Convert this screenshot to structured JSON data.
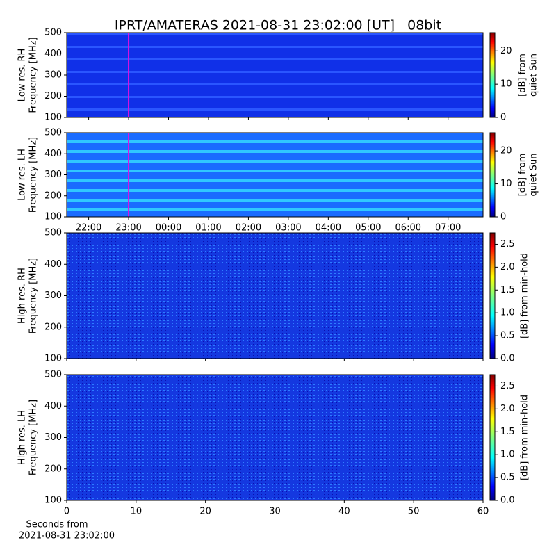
{
  "chart_data": [
    {
      "type": "spectrogram",
      "title": "IPRT/AMATERAS 2021-08-31 23:02:00 [UT]   08bit",
      "ylabel": [
        "Low res. RH",
        "Frequency [MHz]"
      ],
      "ylim": [
        100,
        500
      ],
      "yticks": [
        100,
        200,
        300,
        400,
        500
      ],
      "xlim": [
        21.45,
        31.875
      ],
      "xticks": [
        22,
        23,
        24,
        25,
        26,
        27,
        28,
        29,
        30,
        31
      ],
      "vline": 23,
      "vline_color": "#e010e0",
      "colorbar": {
        "label": [
          "[dB] from",
          "quiet Sun"
        ],
        "lim": [
          0,
          25.5
        ],
        "ticks": [
          0,
          10,
          20
        ]
      }
    },
    {
      "type": "spectrogram",
      "ylabel": [
        "Low res. LH",
        "Frequency [MHz]"
      ],
      "ylim": [
        100,
        500
      ],
      "yticks": [
        100,
        200,
        300,
        400,
        500
      ],
      "xlim": [
        21.45,
        31.875
      ],
      "xticks": [
        {
          "value": 22,
          "label": "22:00"
        },
        {
          "value": 23,
          "label": "23:00"
        },
        {
          "value": 24,
          "label": "00:00"
        },
        {
          "value": 25,
          "label": "01:00"
        },
        {
          "value": 26,
          "label": "02:00"
        },
        {
          "value": 27,
          "label": "03:00"
        },
        {
          "value": 28,
          "label": "04:00"
        },
        {
          "value": 29,
          "label": "05:00"
        },
        {
          "value": 30,
          "label": "06:00"
        },
        {
          "value": 31,
          "label": "07:00"
        }
      ],
      "vline": 23,
      "vline_color": "#e010e0",
      "colorbar": {
        "label": [
          "[dB] from",
          "quiet Sun"
        ],
        "lim": [
          0,
          25.5
        ],
        "ticks": [
          0,
          10,
          20
        ]
      }
    },
    {
      "type": "spectrogram",
      "ylabel": [
        "High res. RH",
        "Frequency [MHz]"
      ],
      "ylim": [
        100,
        500
      ],
      "yticks": [
        100,
        200,
        300,
        400,
        500
      ],
      "xlim": [
        0,
        60
      ],
      "xticks": [
        0,
        10,
        20,
        30,
        40,
        50,
        60
      ],
      "colorbar": {
        "label": [
          "[dB] from min-hold"
        ],
        "lim": [
          0,
          2.75
        ],
        "ticks": [
          {
            "value": 0,
            "label": "0.0"
          },
          {
            "value": 0.5,
            "label": "0.5"
          },
          {
            "value": 1,
            "label": "1.0"
          },
          {
            "value": 1.5,
            "label": "1.5"
          },
          {
            "value": 2,
            "label": "2.0"
          },
          {
            "value": 2.5,
            "label": "2.5"
          }
        ]
      }
    },
    {
      "type": "spectrogram",
      "ylabel": [
        "High res. LH",
        "Frequency [MHz]"
      ],
      "ylim": [
        100,
        500
      ],
      "yticks": [
        100,
        200,
        300,
        400,
        500
      ],
      "xlim": [
        0,
        60
      ],
      "xticks": [
        0,
        10,
        20,
        30,
        40,
        50,
        60
      ],
      "xlabel": [
        "Seconds from",
        "2021-08-31 23:02:00"
      ],
      "colorbar": {
        "label": [
          "[dB] from min-hold"
        ],
        "lim": [
          0,
          2.75
        ],
        "ticks": [
          {
            "value": 0,
            "label": "0.0"
          },
          {
            "value": 0.5,
            "label": "0.5"
          },
          {
            "value": 1,
            "label": "1.0"
          },
          {
            "value": 1.5,
            "label": "1.5"
          },
          {
            "value": 2,
            "label": "2.0"
          },
          {
            "value": 2.5,
            "label": "2.5"
          }
        ]
      }
    }
  ]
}
